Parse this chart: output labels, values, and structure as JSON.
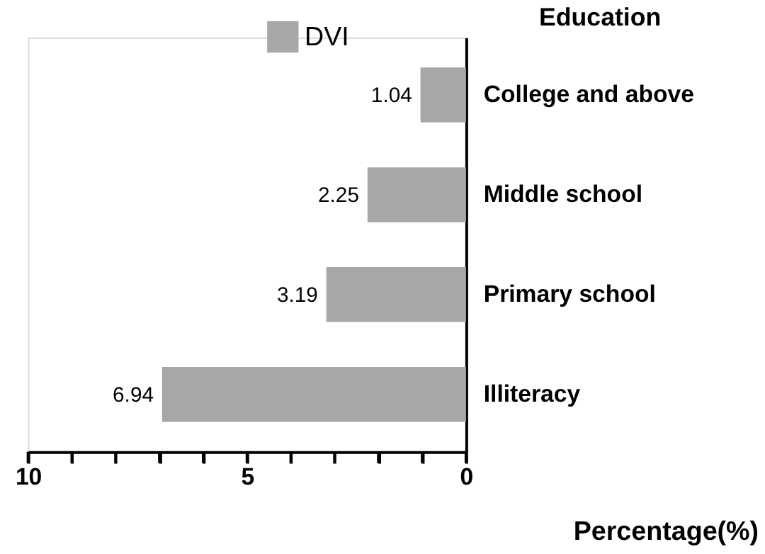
{
  "chart_data": {
    "type": "bar",
    "orientation": "horizontal",
    "ylabel": "Education",
    "xlabel": "Percentage(%)",
    "categories": [
      "College and above",
      "Middle  school",
      "Primary school",
      "Illiteracy"
    ],
    "series": [
      {
        "name": "DVI",
        "color": "#a7a7a9",
        "values": [
          1.04,
          2.25,
          3.19,
          6.94
        ]
      }
    ],
    "xlim": [
      10,
      0
    ],
    "xticks": [
      10,
      {
        "value": 9,
        "label": null
      },
      {
        "value": 8,
        "label": null
      },
      {
        "value": 7,
        "label": null
      },
      {
        "value": 6,
        "label": null
      },
      5,
      {
        "value": 4,
        "label": null
      },
      {
        "value": 3,
        "label": null
      },
      {
        "value": 2,
        "label": null
      },
      {
        "value": 1,
        "label": null
      },
      0
    ],
    "data_labels": true,
    "legend": "top",
    "grid": false
  }
}
